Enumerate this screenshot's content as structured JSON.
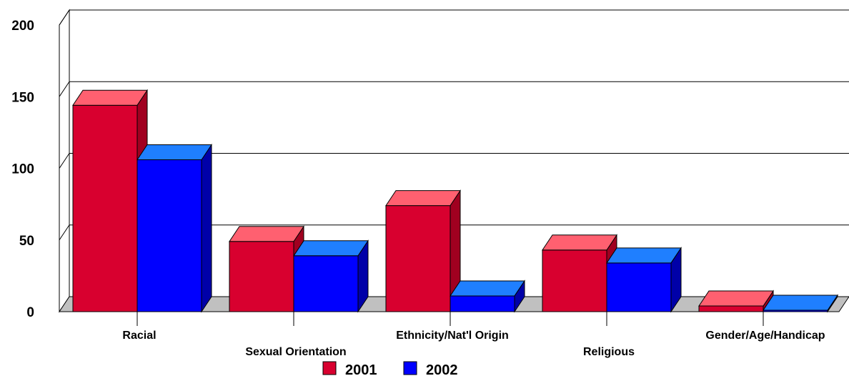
{
  "chart_data": {
    "type": "bar",
    "categories": [
      "Racial",
      "Sexual Orientation",
      "Ethnicity/Nat'l Origin",
      "Religious",
      "Gender/Age/Handicap"
    ],
    "series": [
      {
        "name": "2001",
        "values": [
          144,
          49,
          74,
          43,
          4
        ],
        "color": "#d8002f",
        "top_color": "#ff6070",
        "side_color": "#a00020"
      },
      {
        "name": "2002",
        "values": [
          106,
          39,
          11,
          34,
          1
        ],
        "color": "#0000ff",
        "top_color": "#1f7fff",
        "side_color": "#0000a8"
      }
    ],
    "y_ticks": [
      "0",
      "50",
      "100",
      "150",
      "200"
    ],
    "ylim": [
      0,
      200
    ],
    "grid": true,
    "legend_position": "bottom-center",
    "title": "",
    "xlabel": "",
    "ylabel": ""
  }
}
